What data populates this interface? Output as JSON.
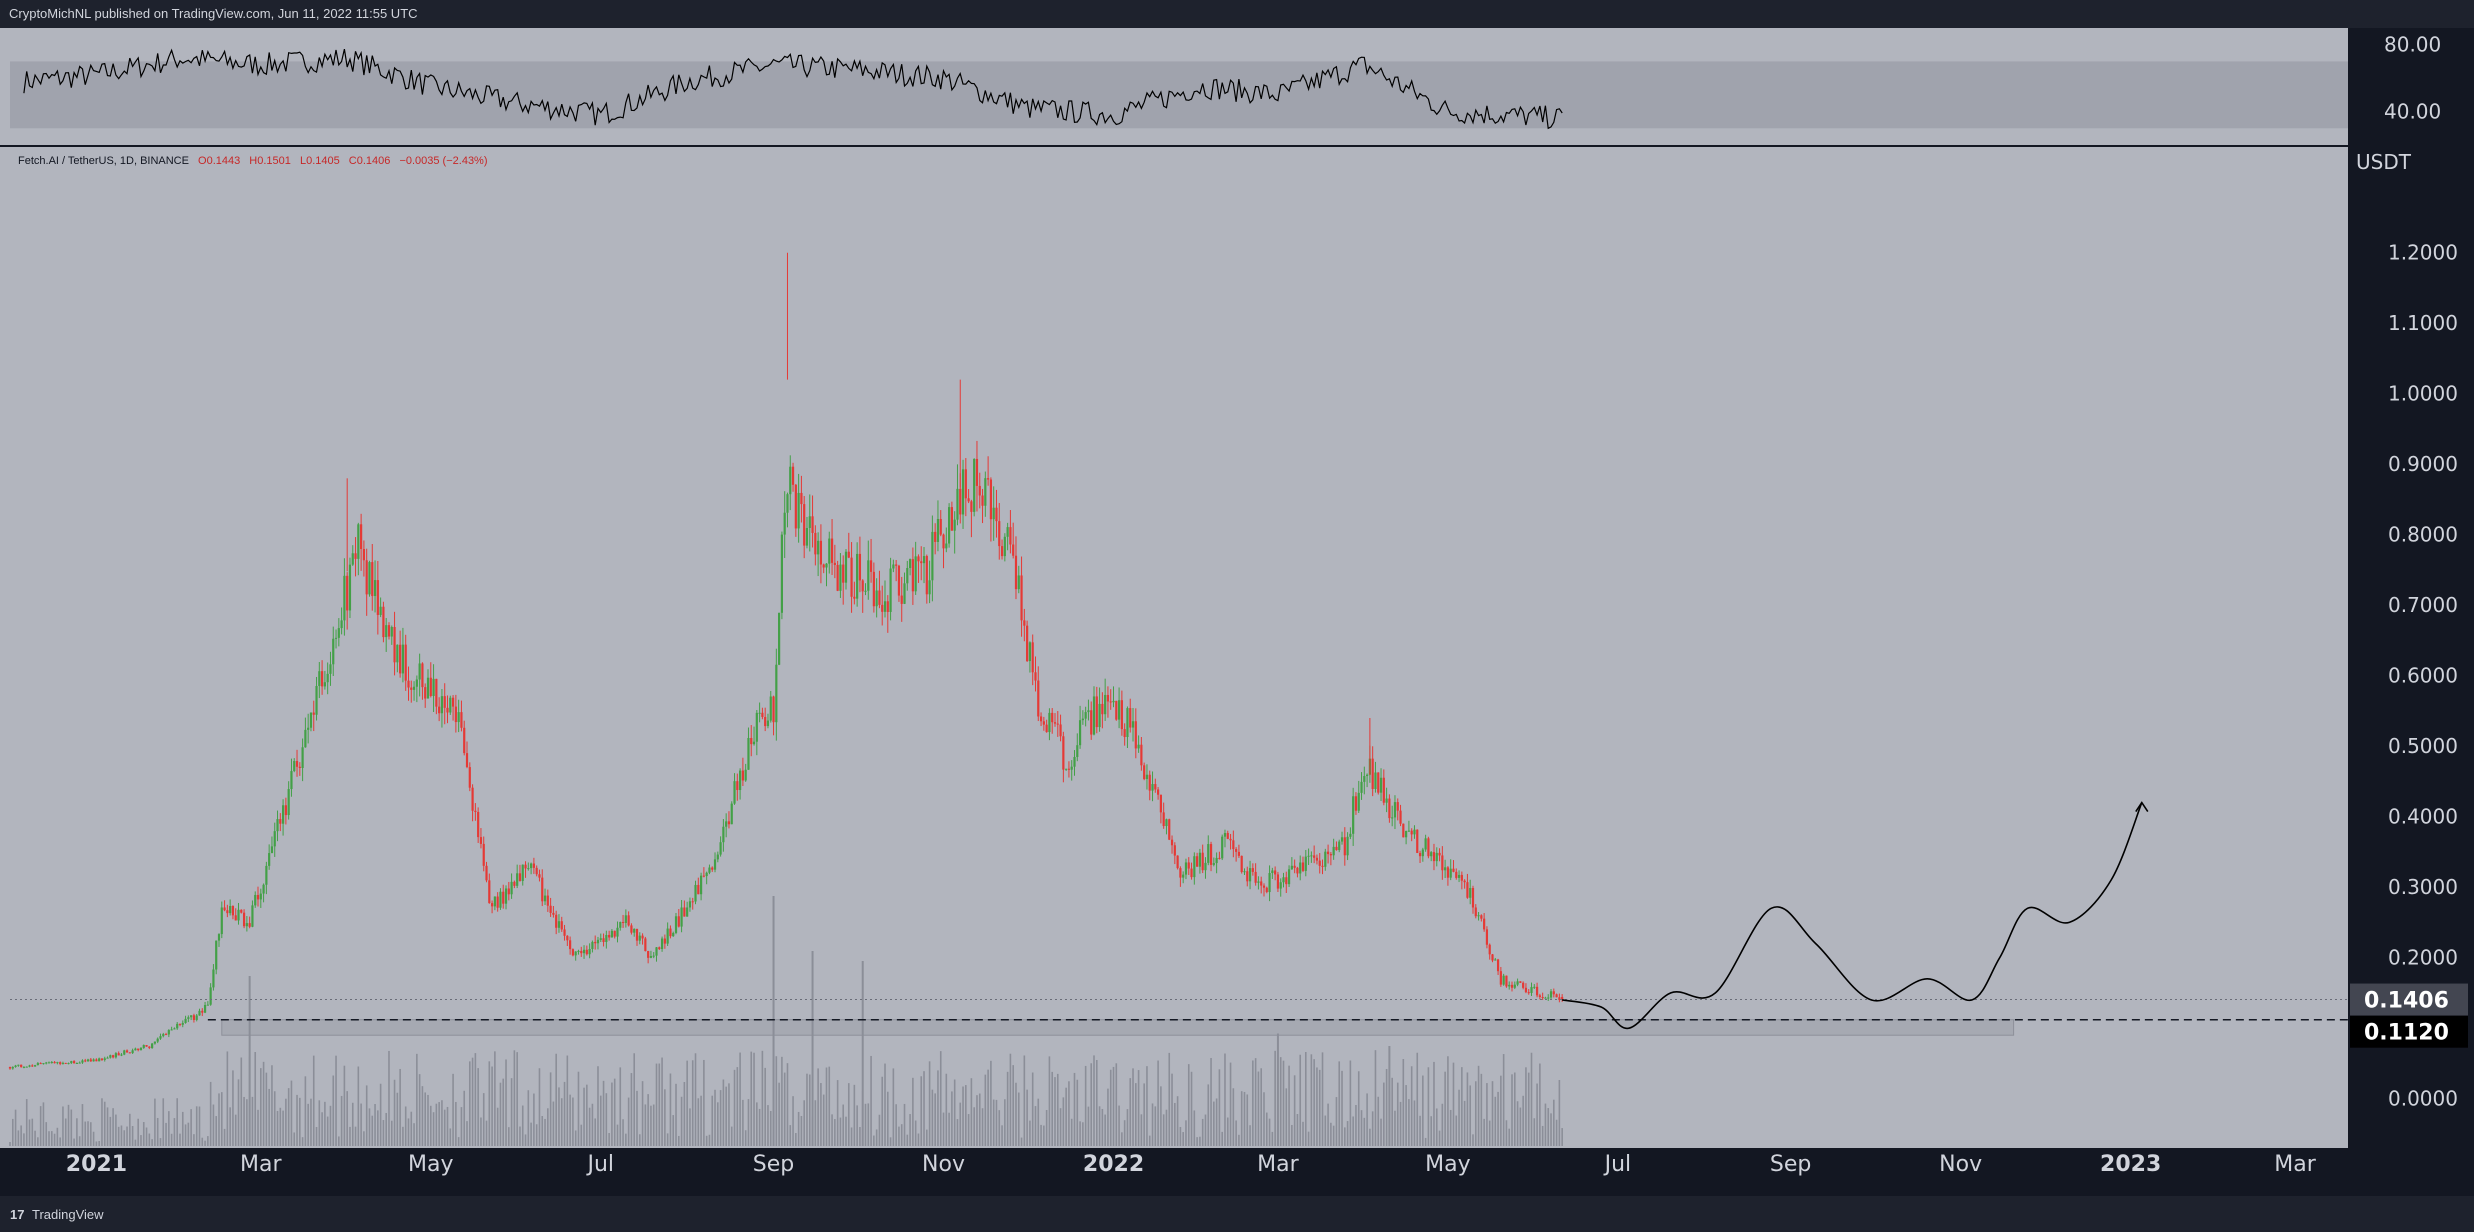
{
  "header": {
    "published": "CryptoMichNL published on TradingView.com, Jun 11, 2022 11:55 UTC"
  },
  "legend": {
    "symbol": "Fetch.AI / TetherUS, 1D, BINANCE",
    "open": "O0.1443",
    "high": "H0.1501",
    "low": "L0.1405",
    "close": "C0.1406",
    "change": "−0.0035 (−2.43%)"
  },
  "footer": {
    "logo": "17",
    "brand": "TradingView"
  },
  "colors": {
    "background": "#b2b5be",
    "frame": "#131722",
    "up": "#26a69a",
    "up_candle": "#43a047",
    "down": "#e53935",
    "volume": "#8b8e98",
    "rsi_band": "#a0a3ad",
    "rsi_line": "#000000",
    "price_badge": "#434651",
    "support_badge": "#000000"
  },
  "chart_data": [
    {
      "type": "line",
      "panel": "RSI",
      "y_ticks": [
        "80.00",
        "40.00"
      ],
      "ylim": [
        20,
        90
      ],
      "band": [
        30,
        70
      ],
      "x_range": [
        "2020-12-06",
        "2022-06-11"
      ],
      "x": [
        "2020-12-06",
        "2021-01-01",
        "2021-02-01",
        "2021-03-01",
        "2021-04-01",
        "2021-05-01",
        "2021-06-01",
        "2021-07-01",
        "2021-08-01",
        "2021-09-01",
        "2021-10-01",
        "2021-11-01",
        "2021-12-01",
        "2022-01-01",
        "2022-02-01",
        "2022-03-01",
        "2022-04-01",
        "2022-05-01",
        "2022-06-11"
      ],
      "values": [
        58,
        62,
        72,
        68,
        72,
        55,
        45,
        38,
        58,
        68,
        65,
        60,
        42,
        38,
        55,
        50,
        68,
        40,
        36
      ]
    },
    {
      "type": "candlestick",
      "panel": "price",
      "title": "Fetch.AI / TetherUS, 1D, BINANCE",
      "ylabel": "USDT",
      "y_ticks": [
        "1.2000",
        "1.1000",
        "1.0000",
        "0.9000",
        "0.8000",
        "0.7000",
        "0.6000",
        "0.5000",
        "0.4000",
        "0.3000",
        "0.2000",
        "0.0000"
      ],
      "ylim": [
        -0.07,
        1.35
      ],
      "x_ticks": [
        "2021",
        "Mar",
        "May",
        "Jul",
        "Sep",
        "Nov",
        "2022",
        "Mar",
        "May",
        "Jul",
        "Sep",
        "Nov",
        "2023",
        "Mar"
      ],
      "x_tick_dates": [
        "2021-01-01",
        "2021-03-01",
        "2021-05-01",
        "2021-07-01",
        "2021-09-01",
        "2021-11-01",
        "2022-01-01",
        "2022-03-01",
        "2022-05-01",
        "2022-07-01",
        "2022-09-01",
        "2022-11-01",
        "2023-01-01",
        "2023-03-01"
      ],
      "x_range": [
        "2020-12-01",
        "2023-03-20"
      ],
      "anchor_dates": [
        "2020-12-01",
        "2021-01-01",
        "2021-01-20",
        "2021-02-10",
        "2021-02-15",
        "2021-02-25",
        "2021-03-10",
        "2021-03-25",
        "2021-04-05",
        "2021-04-20",
        "2021-05-01",
        "2021-05-10",
        "2021-05-23",
        "2021-06-05",
        "2021-06-22",
        "2021-07-10",
        "2021-07-20",
        "2021-08-10",
        "2021-08-25",
        "2021-09-01",
        "2021-09-05",
        "2021-09-08",
        "2021-09-15",
        "2021-09-25",
        "2021-10-10",
        "2021-10-25",
        "2021-11-05",
        "2021-11-15",
        "2021-11-25",
        "2021-12-05",
        "2021-12-15",
        "2021-12-30",
        "2022-01-10",
        "2022-01-25",
        "2022-02-10",
        "2022-02-22",
        "2022-03-10",
        "2022-03-25",
        "2022-04-01",
        "2022-04-15",
        "2022-04-30",
        "2022-05-10",
        "2022-05-20",
        "2022-06-11"
      ],
      "anchor_closes": [
        0.045,
        0.055,
        0.075,
        0.13,
        0.27,
        0.25,
        0.42,
        0.62,
        0.78,
        0.62,
        0.58,
        0.55,
        0.27,
        0.33,
        0.2,
        0.25,
        0.2,
        0.33,
        0.52,
        0.55,
        0.87,
        0.85,
        0.8,
        0.75,
        0.72,
        0.74,
        0.85,
        0.88,
        0.77,
        0.57,
        0.48,
        0.58,
        0.5,
        0.32,
        0.36,
        0.3,
        0.33,
        0.36,
        0.48,
        0.38,
        0.33,
        0.28,
        0.17,
        0.14
      ],
      "last": {
        "open": 0.1443,
        "high": 0.1501,
        "low": 0.1405,
        "close": 0.1406
      },
      "price_label": "0.1406",
      "support_label": "0.1120",
      "support_level": 0.112,
      "support_start": "2021-02-10",
      "support_box": {
        "from": "2021-02-15",
        "to": "2022-11-20",
        "low": 0.09,
        "high": 0.112
      },
      "volume_spikes": [
        {
          "date": "2021-09-01",
          "value": 1.0
        },
        {
          "date": "2021-09-15",
          "value": 0.78
        },
        {
          "date": "2021-10-03",
          "value": 0.74
        },
        {
          "date": "2021-02-25",
          "value": 0.68
        },
        {
          "date": "2022-03-01",
          "value": 0.45
        },
        {
          "date": "2022-04-10",
          "value": 0.4
        }
      ],
      "projection": {
        "dates": [
          "2022-06-11",
          "2022-06-25",
          "2022-07-05",
          "2022-07-20",
          "2022-08-05",
          "2022-08-25",
          "2022-09-10",
          "2022-09-30",
          "2022-10-20",
          "2022-11-05",
          "2022-11-15",
          "2022-11-25",
          "2022-12-10",
          "2022-12-25",
          "2023-01-05"
        ],
        "values": [
          0.14,
          0.13,
          0.1,
          0.15,
          0.15,
          0.27,
          0.22,
          0.14,
          0.17,
          0.14,
          0.2,
          0.27,
          0.25,
          0.31,
          0.42
        ]
      }
    }
  ]
}
